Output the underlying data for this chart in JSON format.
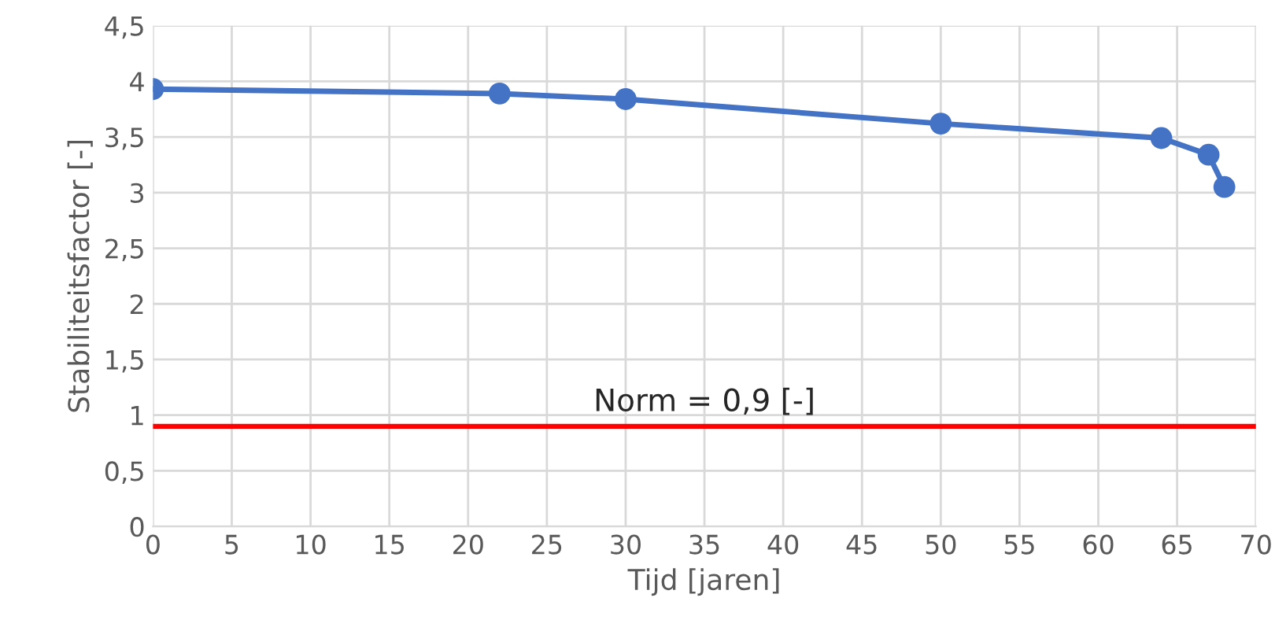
{
  "chart_data": {
    "type": "line",
    "xlabel": "Tijd [jaren]",
    "ylabel": "Stabiliteitsfactor [-]",
    "x": [
      0,
      22,
      30,
      50,
      64,
      67,
      68
    ],
    "series": [
      {
        "color": "#4472c4",
        "values": [
          3.93,
          3.89,
          3.84,
          3.62,
          3.49,
          3.34,
          3.05
        ]
      }
    ],
    "marker": "circle",
    "line_style": "solid",
    "grid": true,
    "xlim": [
      0,
      70
    ],
    "xticks": [
      0,
      5,
      10,
      15,
      20,
      25,
      30,
      35,
      40,
      45,
      50,
      55,
      60,
      65,
      70
    ],
    "ylim": [
      0,
      4.5
    ],
    "yticks": [
      0,
      {
        "value": 0.5,
        "label": "0,5"
      },
      1,
      {
        "value": 1.5,
        "label": "1,5"
      },
      2,
      {
        "value": 2.5,
        "label": "2,5"
      },
      3,
      {
        "value": 3.5,
        "label": "3,5"
      },
      4,
      {
        "value": 4.5,
        "label": "4,5"
      }
    ],
    "ref_lines": [
      {
        "axis": "y",
        "value": 0.9,
        "label": "Norm = 0,9 [-]",
        "color": "#ff0000",
        "line_style": "solid"
      }
    ]
  }
}
